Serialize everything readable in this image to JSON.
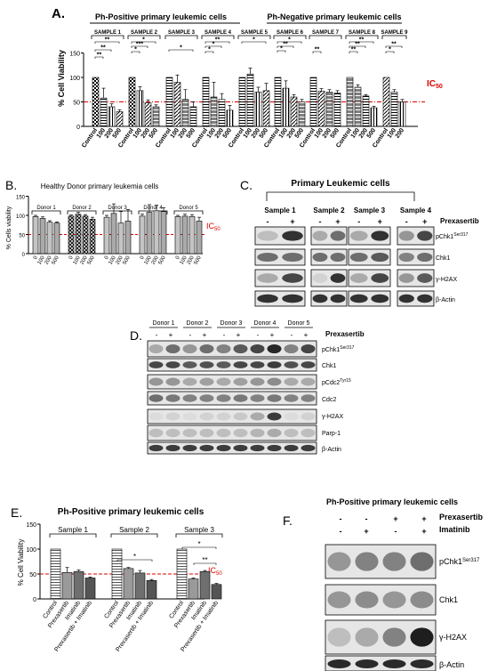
{
  "panelA": {
    "letter": "A.",
    "group_pos": "Ph-Positive primary leukemic cells",
    "group_neg": "Ph-Negative primary leukemic cells",
    "ylabel": "% Cell Viability",
    "ic50": "IC50",
    "yticks": [
      "0",
      "50",
      "100",
      "150"
    ],
    "doses": [
      "Control",
      "100",
      "200",
      "500"
    ],
    "samples": [
      {
        "label": "SAMPLE 1",
        "values": [
          100,
          58,
          40,
          30
        ],
        "errors": [
          0,
          20,
          6,
          4
        ]
      },
      {
        "label": "SAMPLE 2",
        "values": [
          100,
          73,
          48,
          40
        ],
        "errors": [
          0,
          8,
          6,
          4
        ]
      },
      {
        "label": "SAMPLE 3",
        "values": [
          100,
          90,
          55,
          40
        ],
        "errors": [
          0,
          15,
          20,
          10
        ]
      },
      {
        "label": "SAMPLE 4",
        "values": [
          100,
          60,
          55,
          33
        ],
        "errors": [
          0,
          30,
          12,
          10
        ]
      },
      {
        "label": "SAMPLE 5",
        "values": [
          100,
          107,
          70,
          73
        ],
        "errors": [
          0,
          12,
          10,
          15
        ]
      },
      {
        "label": "SAMPLE 6",
        "values": [
          100,
          78,
          60,
          50
        ],
        "errors": [
          0,
          15,
          5,
          5
        ]
      },
      {
        "label": "SAMPLE 7",
        "values": [
          100,
          72,
          70,
          68
        ],
        "errors": [
          0,
          5,
          5,
          5
        ]
      },
      {
        "label": "SAMPLE 8",
        "values": [
          100,
          80,
          62,
          38
        ],
        "errors": [
          0,
          5,
          3,
          3
        ]
      },
      {
        "label": "SAMPLE 9",
        "values": [
          100,
          70,
          50
        ],
        "doses": [
          "Control",
          "100",
          "200"
        ],
        "errors": [
          0,
          5,
          5
        ]
      }
    ],
    "sig": [
      "**",
      "**",
      "**",
      "*",
      "***",
      "*",
      "*",
      "**",
      "*",
      "*",
      "*",
      "*",
      "**",
      "*",
      "**",
      "**",
      "**",
      "**",
      "**",
      "*"
    ]
  },
  "panelB": {
    "letter": "B.",
    "title": "Healthy Donor primary leukemia cells",
    "ylabel": "% Cells viability",
    "ic50": "IC50",
    "yticks": [
      "0",
      "50",
      "100",
      "150"
    ],
    "doses": [
      "0",
      "100",
      "200",
      "500"
    ],
    "donors": [
      {
        "label": "Donor 1",
        "values": [
          97,
          92,
          82,
          80
        ],
        "errors": [
          3,
          4,
          4,
          3
        ]
      },
      {
        "label": "Donor 2",
        "values": [
          98,
          103,
          98,
          90
        ],
        "errors": [
          3,
          5,
          4,
          5
        ]
      },
      {
        "label": "Donor 3",
        "values": [
          95,
          105,
          80,
          85
        ],
        "errors": [
          5,
          25,
          30,
          30
        ]
      },
      {
        "label": "Donor 4",
        "values": [
          98,
          108,
          112,
          110
        ],
        "errors": [
          5,
          20,
          15,
          10
        ]
      },
      {
        "label": "Donor 5",
        "values": [
          97,
          98,
          97,
          85
        ],
        "errors": [
          3,
          5,
          5,
          10
        ]
      }
    ]
  },
  "panelC": {
    "letter": "C.",
    "title": "Primary Leukemic cells",
    "samples": [
      "Sample 1",
      "Sample 2",
      "Sample 3",
      "Sample 4"
    ],
    "minus": "-",
    "plus": "+",
    "treatment": "Prexasertib",
    "rows": [
      "pChk1",
      "Chk1",
      "γ-H2AX",
      "β-Actin"
    ],
    "phospho_site": "Ser317"
  },
  "panelD": {
    "letter": "D.",
    "donors": [
      "Donor 1",
      "Donor 2",
      "Donor 3",
      "Donor 4",
      "Donor 5"
    ],
    "minus": "-",
    "plus": "+",
    "treatment": "Prexasertib",
    "rows": [
      "pChk1",
      "Chk1",
      "pCdc2",
      "Cdc2",
      "γ-H2AX",
      "Parp-1",
      "β-Actin"
    ],
    "phospho_chk1": "Ser317",
    "phospho_cdc2": "Tyr15"
  },
  "panelE": {
    "letter": "E.",
    "title": "Ph-Positive primary leukemic cells",
    "ylabel": "% Cell Viability",
    "ic50": "IC50",
    "yticks": [
      "0",
      "50",
      "100",
      "150"
    ],
    "treatments": [
      "Control",
      "Prexasertib",
      "Imatinib",
      "Prexasertib + Imatinib"
    ],
    "samples": [
      {
        "label": "Sample 1",
        "values": [
          100,
          53,
          55,
          42
        ],
        "errors": [
          0,
          10,
          3,
          2
        ]
      },
      {
        "label": "Sample 2",
        "values": [
          100,
          61,
          52,
          37
        ],
        "errors": [
          0,
          2,
          5,
          2
        ]
      },
      {
        "label": "Sample 3",
        "values": [
          100,
          40,
          55,
          29
        ],
        "errors": [
          0,
          2,
          2,
          2
        ]
      }
    ],
    "sig": [
      "*",
      "*",
      "**"
    ]
  },
  "panelF": {
    "letter": "F.",
    "title": "Ph-Positive primary leukemic cells",
    "treat1": "Prexasertib",
    "treat2": "Imatinib",
    "row1_signs": [
      "-",
      "-",
      "+",
      "+"
    ],
    "row2_signs": [
      "-",
      "+",
      "-",
      "+"
    ],
    "rows": [
      "pChk1",
      "Chk1",
      "γ-H2AX",
      "β-Actin"
    ],
    "phospho_site": "Ser317"
  }
}
